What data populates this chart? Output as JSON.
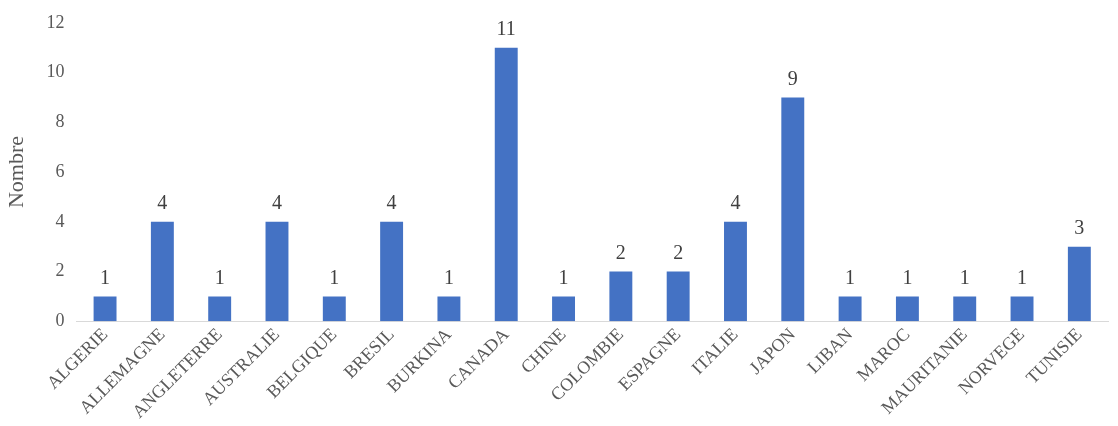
{
  "chart_data": {
    "type": "bar",
    "ylabel": "Nombre",
    "categories": [
      "ALGERIE",
      "ALLEMAGNE",
      "ANGLETERRE",
      "AUSTRALIE",
      "BELGIQUE",
      "BRESIL",
      "BURKINA",
      "CANADA",
      "CHINE",
      "COLOMBIE",
      "ESPAGNE",
      "ITALIE",
      "JAPON",
      "LIBAN",
      "MAROC",
      "MAURITANIE",
      "NORVEGE",
      "TUNISIE"
    ],
    "values": [
      1,
      4,
      1,
      4,
      1,
      4,
      1,
      11,
      1,
      2,
      2,
      4,
      9,
      1,
      1,
      1,
      1,
      3
    ],
    "color": "#4472c4",
    "ylim": [
      0,
      12
    ],
    "yticks": [
      0,
      2,
      4,
      6,
      8,
      10,
      12
    ],
    "grid": false,
    "legend": false,
    "data_labels": true
  }
}
